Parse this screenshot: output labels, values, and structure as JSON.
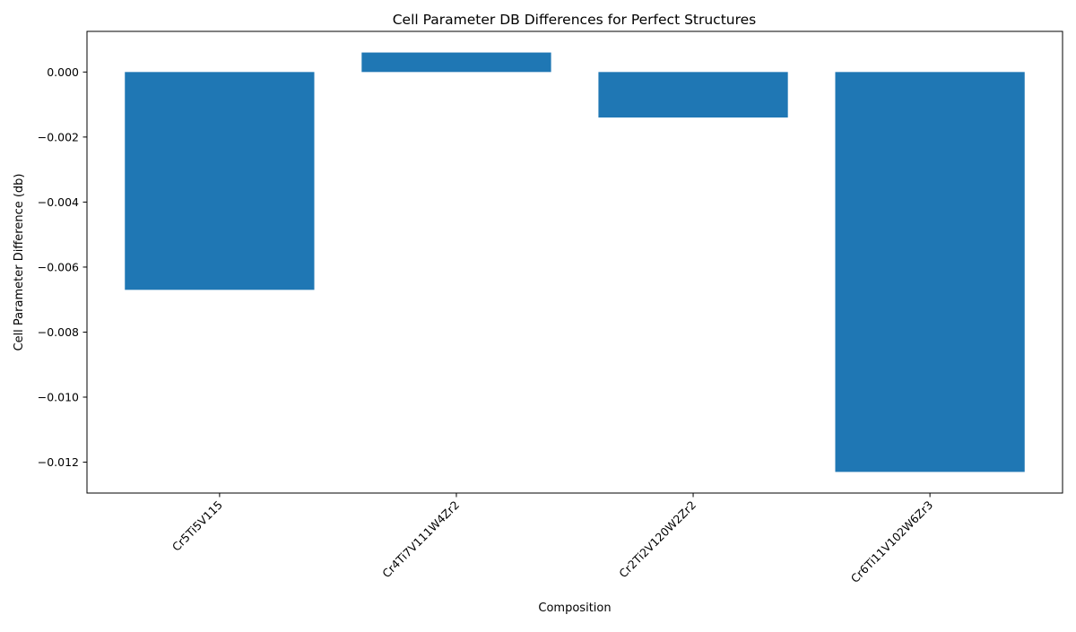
{
  "chart_data": {
    "type": "bar",
    "title": "Cell Parameter DB Differences for Perfect Structures",
    "xlabel": "Composition",
    "ylabel": "Cell Parameter Difference (db)",
    "categories": [
      "Cr5Ti5V115",
      "Cr4Ti7V111W4Zr2",
      "Cr2Ti2V120W2Zr2",
      "Cr6Ti11V102W6Zr3"
    ],
    "values": [
      -0.0067,
      0.0006,
      -0.0014,
      -0.0123
    ],
    "ylim": [
      -0.01295,
      0.00125
    ],
    "yticks": [
      0.0,
      -0.002,
      -0.004,
      -0.006,
      -0.008,
      -0.01,
      -0.012
    ],
    "ytick_labels": [
      "0.000",
      "−0.002",
      "−0.004",
      "−0.006",
      "−0.008",
      "−0.010",
      "−0.012"
    ],
    "bar_color": "#1f77b4",
    "grid": false,
    "legend": "none"
  }
}
